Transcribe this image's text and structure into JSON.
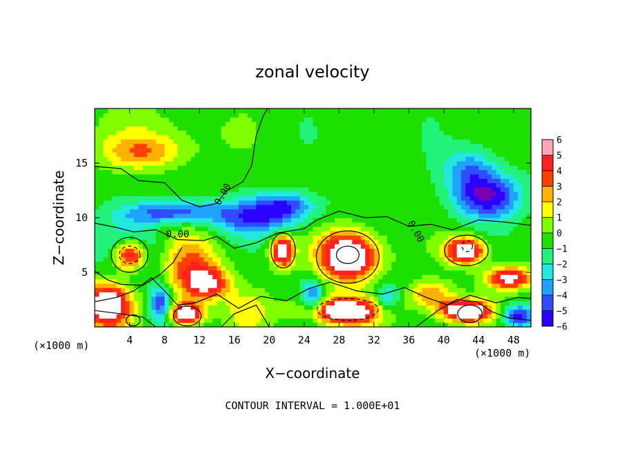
{
  "chart_data": {
    "type": "heatmap",
    "title": "zonal velocity",
    "xlabel": "X−coordinate",
    "ylabel": "Z−coordinate",
    "x_unit": "(×1000 m)",
    "z_unit": "(×1000 m)",
    "xlim": [
      0,
      50
    ],
    "ylim": [
      0,
      20
    ],
    "x_ticks": [
      4,
      8,
      12,
      16,
      20,
      24,
      28,
      32,
      36,
      40,
      44,
      48
    ],
    "y_ticks": [
      5,
      10,
      15
    ],
    "colorbar": {
      "range": [
        -6,
        6
      ],
      "ticks": [
        6,
        5,
        4,
        3,
        2,
        1,
        0,
        -1,
        -2,
        -3,
        -4,
        -5,
        -6
      ],
      "tick_labels": [
        "6",
        "5",
        "4",
        "3",
        "2",
        "1",
        "0",
        "−1",
        "−2",
        "−3",
        "−4",
        "−5",
        "−6"
      ]
    },
    "contour_labels": [
      "0.00",
      "0.00",
      "0.00"
    ],
    "footer": "CONTOUR INTERVAL = 1.000E+01",
    "features": [
      {
        "x": 5.5,
        "z": 16.0,
        "value": 3.0,
        "sx": 4.5,
        "sz": 1.5
      },
      {
        "x": 7.0,
        "z": 17.8,
        "value": 1.0,
        "sx": 8.0,
        "sz": 2.5
      },
      {
        "x": 9.0,
        "z": 10.5,
        "value": -4.2,
        "sx": 5.5,
        "sz": 1.0
      },
      {
        "x": 18.5,
        "z": 10.0,
        "value": -4.0,
        "sx": 5.0,
        "sz": 1.6
      },
      {
        "x": 22.0,
        "z": 11.2,
        "value": -3.5,
        "sx": 3.5,
        "sz": 1.2
      },
      {
        "x": 45.0,
        "z": 12.0,
        "value": -5.2,
        "sx": 3.8,
        "sz": 2.0
      },
      {
        "x": 43.0,
        "z": 14.5,
        "value": -3.0,
        "sx": 3.0,
        "sz": 2.0
      },
      {
        "x": 4.0,
        "z": 6.6,
        "value": 7.5,
        "sx": 1.9,
        "sz": 1.4
      },
      {
        "x": 4.0,
        "z": 7.0,
        "value": -2.5,
        "sx": 3.5,
        "sz": 2.5
      },
      {
        "x": 21.5,
        "z": 7.0,
        "value": 7.5,
        "sx": 1.2,
        "sz": 1.4
      },
      {
        "x": 29.0,
        "z": 6.5,
        "value": 8.5,
        "sx": 3.3,
        "sz": 2.2
      },
      {
        "x": 42.5,
        "z": 7.0,
        "value": 7.5,
        "sx": 2.2,
        "sz": 1.2
      },
      {
        "x": 11.0,
        "z": 5.5,
        "value": 4.0,
        "sx": 3.2,
        "sz": 2.8
      },
      {
        "x": 13.0,
        "z": 4.0,
        "value": 5.0,
        "sx": 2.5,
        "sz": 1.4
      },
      {
        "x": 47.5,
        "z": 4.5,
        "value": 6.5,
        "sx": 2.5,
        "sz": 1.0
      },
      {
        "x": 1.5,
        "z": 2.0,
        "value": 8.0,
        "sx": 2.5,
        "sz": 2.0
      },
      {
        "x": 10.5,
        "z": 1.2,
        "value": 8.0,
        "sx": 1.8,
        "sz": 1.0
      },
      {
        "x": 28.5,
        "z": 1.5,
        "value": 8.0,
        "sx": 4.5,
        "sz": 1.2
      },
      {
        "x": 42.5,
        "z": 1.5,
        "value": 8.0,
        "sx": 3.0,
        "sz": 1.0
      },
      {
        "x": 17.5,
        "z": 1.5,
        "value": 2.0,
        "sx": 2.5,
        "sz": 1.8
      },
      {
        "x": 38.5,
        "z": 3.0,
        "value": 3.5,
        "sx": 2.5,
        "sz": 1.2
      },
      {
        "x": 7.5,
        "z": 2.2,
        "value": -4.5,
        "sx": 1.2,
        "sz": 1.8
      },
      {
        "x": 25.0,
        "z": 2.5,
        "value": -4.0,
        "sx": 1.3,
        "sz": 1.8
      },
      {
        "x": 33.5,
        "z": 2.5,
        "value": -3.0,
        "sx": 1.5,
        "sz": 1.5
      },
      {
        "x": 48.5,
        "z": 1.0,
        "value": -5.0,
        "sx": 1.8,
        "sz": 1.0
      }
    ]
  }
}
